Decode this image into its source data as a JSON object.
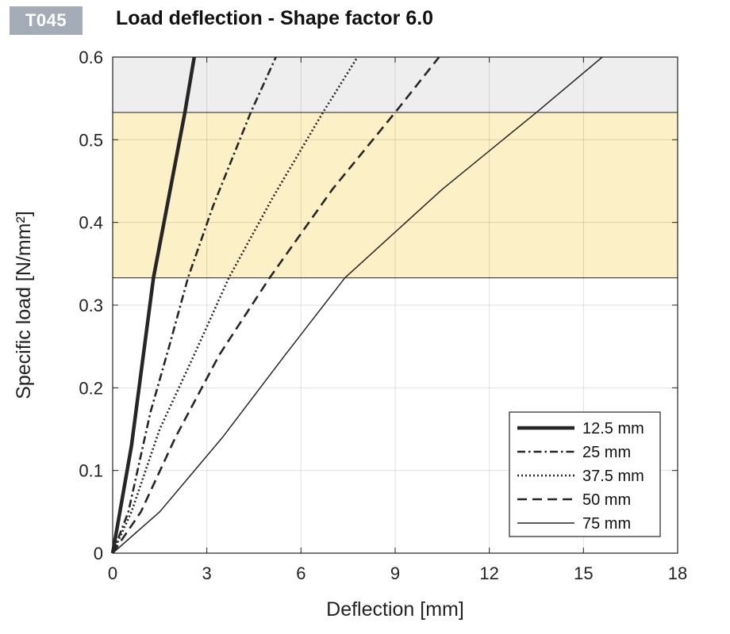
{
  "badge": "T045",
  "chart_data": {
    "type": "line",
    "title": "Load deflection - Shape factor 6.0",
    "xlabel": "Deflection  [mm]",
    "ylabel": "Specific load [N/mm²]",
    "xlim": [
      0,
      18
    ],
    "ylim": [
      0,
      0.6
    ],
    "xticks": [
      0,
      3,
      6,
      9,
      12,
      15,
      18
    ],
    "yticks": [
      0,
      0.1,
      0.2,
      0.3,
      0.4,
      0.5,
      0.6
    ],
    "grid": true,
    "legend_position": "bottom-right",
    "bands": [
      {
        "from": 0.333,
        "to": 0.533,
        "color": "#fcf0c6"
      },
      {
        "from": 0.533,
        "to": 0.6,
        "color": "#eeeeee"
      }
    ],
    "series": [
      {
        "name": "12.5 mm",
        "style": "solid-thick",
        "points": [
          [
            0,
            0
          ],
          [
            0.6,
            0.13
          ],
          [
            1.3,
            0.333
          ],
          [
            2.3,
            0.533
          ],
          [
            2.6,
            0.6
          ]
        ]
      },
      {
        "name": "25 mm",
        "style": "dashdot",
        "points": [
          [
            0,
            0
          ],
          [
            0.5,
            0.05
          ],
          [
            1.2,
            0.17
          ],
          [
            1.8,
            0.25
          ],
          [
            2.4,
            0.333
          ],
          [
            3.2,
            0.42
          ],
          [
            4.4,
            0.533
          ],
          [
            5.2,
            0.6
          ]
        ]
      },
      {
        "name": "37.5 mm",
        "style": "dotted",
        "points": [
          [
            0,
            0
          ],
          [
            0.6,
            0.05
          ],
          [
            1.5,
            0.15
          ],
          [
            2.6,
            0.24
          ],
          [
            3.7,
            0.333
          ],
          [
            5.1,
            0.43
          ],
          [
            6.7,
            0.533
          ],
          [
            7.8,
            0.6
          ]
        ]
      },
      {
        "name": "50 mm",
        "style": "dashed",
        "points": [
          [
            0,
            0
          ],
          [
            0.9,
            0.05
          ],
          [
            2.0,
            0.14
          ],
          [
            3.4,
            0.24
          ],
          [
            5.0,
            0.333
          ],
          [
            7.0,
            0.44
          ],
          [
            9.0,
            0.533
          ],
          [
            10.4,
            0.6
          ]
        ]
      },
      {
        "name": "75 mm",
        "style": "solid-thin",
        "points": [
          [
            0,
            0
          ],
          [
            1.5,
            0.05
          ],
          [
            3.5,
            0.14
          ],
          [
            5.5,
            0.24
          ],
          [
            7.4,
            0.333
          ],
          [
            10.5,
            0.44
          ],
          [
            13.5,
            0.533
          ],
          [
            15.6,
            0.6
          ]
        ]
      }
    ]
  }
}
